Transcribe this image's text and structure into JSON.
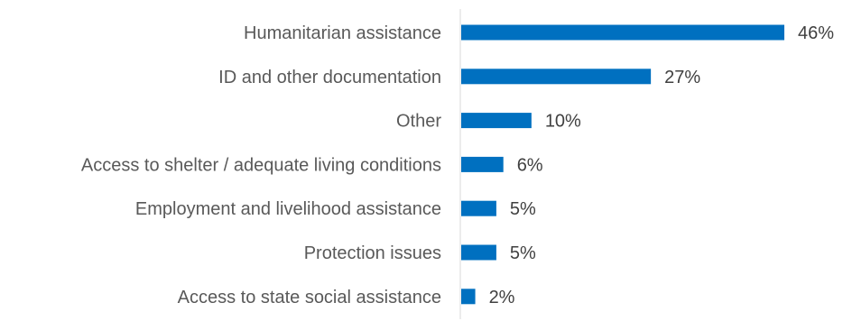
{
  "chart_data": {
    "type": "bar",
    "orientation": "horizontal",
    "categories": [
      "Humanitarian assistance",
      "ID and other documentation",
      "Other",
      "Access to shelter / adequate living conditions",
      "Employment and livelihood assistance",
      "Protection issues",
      "Access to state social assistance"
    ],
    "values": [
      46,
      27,
      10,
      6,
      5,
      5,
      2
    ],
    "value_labels": [
      "46%",
      "27%",
      "10%",
      "6%",
      "5%",
      "5%",
      "2%"
    ],
    "unit": "%",
    "xlim": [
      0,
      46
    ],
    "grid": false,
    "legend": "none",
    "bar_color": "#0070c0",
    "axis_color": "#d9d9d9"
  }
}
